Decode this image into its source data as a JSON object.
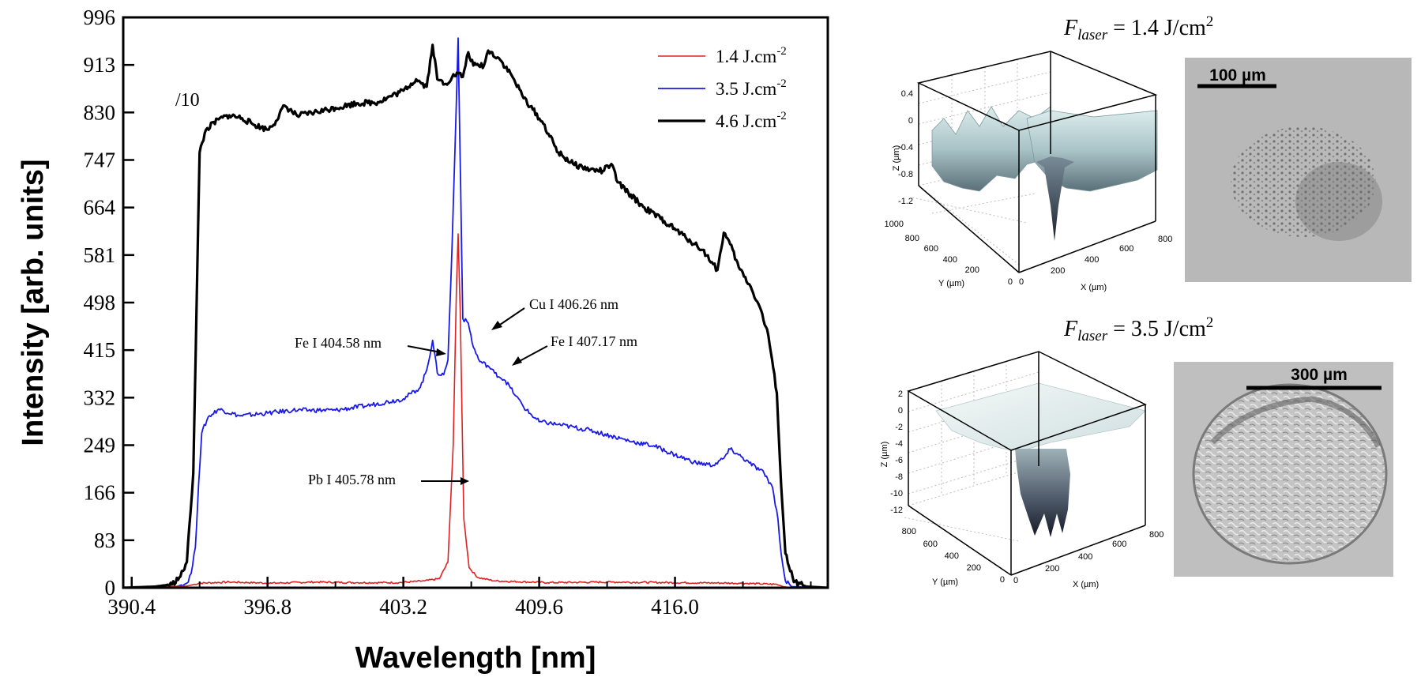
{
  "chart_data": {
    "type": "line",
    "xlabel": "Wavelength [nm]",
    "ylabel": "Intensity [arb. units]",
    "xlim": [
      390.0,
      423.2
    ],
    "ylim": [
      0,
      996
    ],
    "x_ticks": [
      "390.4",
      "396.8",
      "403.2",
      "409.6",
      "416.0"
    ],
    "y_ticks": [
      "0",
      "83",
      "166",
      "249",
      "332",
      "415",
      "498",
      "581",
      "664",
      "747",
      "830",
      "913",
      "996"
    ],
    "grid": false,
    "legend_position": "top-right",
    "series": [
      {
        "name": "1.4 J.cm-2",
        "label_main": "1.4 J.cm",
        "label_sup": "-2",
        "color": "#e02020",
        "points": [
          [
            390.0,
            0
          ],
          [
            393.0,
            3
          ],
          [
            393.6,
            8
          ],
          [
            395.0,
            10
          ],
          [
            397.0,
            8
          ],
          [
            399.0,
            10
          ],
          [
            401.0,
            9
          ],
          [
            403.0,
            9
          ],
          [
            404.2,
            12
          ],
          [
            404.9,
            16
          ],
          [
            405.3,
            45
          ],
          [
            405.55,
            250
          ],
          [
            405.7,
            520
          ],
          [
            405.78,
            618
          ],
          [
            405.88,
            480
          ],
          [
            406.05,
            120
          ],
          [
            406.3,
            35
          ],
          [
            406.7,
            18
          ],
          [
            407.5,
            12
          ],
          [
            410.0,
            9
          ],
          [
            413.0,
            10
          ],
          [
            416.0,
            9
          ],
          [
            419.0,
            8
          ],
          [
            420.8,
            6
          ],
          [
            421.1,
            2
          ],
          [
            421.5,
            0
          ],
          [
            423.2,
            0
          ]
        ]
      },
      {
        "name": "3.5 J.cm-2",
        "label_main": "3.5 J.cm",
        "label_sup": "-2",
        "color": "#1a1ae6",
        "points": [
          [
            390.0,
            0
          ],
          [
            392.5,
            2
          ],
          [
            393.0,
            8
          ],
          [
            393.2,
            25
          ],
          [
            393.4,
            70
          ],
          [
            393.55,
            180
          ],
          [
            393.7,
            270
          ],
          [
            394.0,
            298
          ],
          [
            394.5,
            312
          ],
          [
            395.5,
            300
          ],
          [
            396.8,
            305
          ],
          [
            398.0,
            310
          ],
          [
            400.0,
            310
          ],
          [
            401.5,
            318
          ],
          [
            403.2,
            330
          ],
          [
            404.0,
            350
          ],
          [
            404.3,
            380
          ],
          [
            404.58,
            432
          ],
          [
            404.8,
            375
          ],
          [
            405.1,
            372
          ],
          [
            405.3,
            398
          ],
          [
            405.5,
            600
          ],
          [
            405.7,
            850
          ],
          [
            405.78,
            960
          ],
          [
            405.9,
            700
          ],
          [
            406.0,
            470
          ],
          [
            406.26,
            462
          ],
          [
            406.5,
            420
          ],
          [
            406.8,
            395
          ],
          [
            407.17,
            388
          ],
          [
            407.5,
            375
          ],
          [
            408.0,
            362
          ],
          [
            408.5,
            335
          ],
          [
            409.0,
            310
          ],
          [
            409.6,
            290
          ],
          [
            410.5,
            285
          ],
          [
            412.0,
            275
          ],
          [
            413.0,
            265
          ],
          [
            414.0,
            255
          ],
          [
            415.0,
            248
          ],
          [
            416.0,
            232
          ],
          [
            417.0,
            218
          ],
          [
            417.8,
            214
          ],
          [
            418.3,
            226
          ],
          [
            418.6,
            242
          ],
          [
            419.0,
            232
          ],
          [
            419.5,
            218
          ],
          [
            420.2,
            200
          ],
          [
            420.6,
            175
          ],
          [
            420.85,
            120
          ],
          [
            421.0,
            60
          ],
          [
            421.2,
            12
          ],
          [
            421.5,
            2
          ],
          [
            423.2,
            0
          ]
        ]
      },
      {
        "name": "4.6 J.cm-2",
        "label_main": "4.6 J.cm",
        "label_sup": "-2",
        "color": "#000000",
        "points": [
          [
            390.0,
            0
          ],
          [
            391.5,
            2
          ],
          [
            392.3,
            6
          ],
          [
            392.7,
            20
          ],
          [
            393.0,
            45
          ],
          [
            393.3,
            200
          ],
          [
            393.6,
            760
          ],
          [
            393.9,
            800
          ],
          [
            394.5,
            818
          ],
          [
            395.0,
            825
          ],
          [
            395.6,
            820
          ],
          [
            396.2,
            808
          ],
          [
            396.8,
            800
          ],
          [
            397.2,
            815
          ],
          [
            397.6,
            842
          ],
          [
            398.2,
            824
          ],
          [
            399.0,
            830
          ],
          [
            400.0,
            838
          ],
          [
            401.0,
            846
          ],
          [
            402.0,
            848
          ],
          [
            403.2,
            868
          ],
          [
            403.8,
            888
          ],
          [
            404.3,
            875
          ],
          [
            404.58,
            948
          ],
          [
            404.8,
            888
          ],
          [
            405.2,
            880
          ],
          [
            405.5,
            892
          ],
          [
            405.78,
            898
          ],
          [
            406.0,
            892
          ],
          [
            406.26,
            935
          ],
          [
            406.5,
            912
          ],
          [
            407.0,
            912
          ],
          [
            407.2,
            938
          ],
          [
            407.7,
            925
          ],
          [
            408.3,
            895
          ],
          [
            408.8,
            860
          ],
          [
            409.3,
            835
          ],
          [
            409.8,
            810
          ],
          [
            410.5,
            760
          ],
          [
            411.2,
            740
          ],
          [
            412.0,
            730
          ],
          [
            412.6,
            728
          ],
          [
            413.0,
            740
          ],
          [
            413.3,
            708
          ],
          [
            413.8,
            690
          ],
          [
            414.5,
            665
          ],
          [
            415.5,
            640
          ],
          [
            416.5,
            612
          ],
          [
            417.3,
            590
          ],
          [
            417.8,
            565
          ],
          [
            418.0,
            555
          ],
          [
            418.3,
            620
          ],
          [
            418.6,
            600
          ],
          [
            419.0,
            560
          ],
          [
            419.5,
            530
          ],
          [
            420.0,
            490
          ],
          [
            420.4,
            440
          ],
          [
            420.8,
            340
          ],
          [
            421.0,
            180
          ],
          [
            421.2,
            60
          ],
          [
            421.6,
            10
          ],
          [
            422.2,
            2
          ],
          [
            423.2,
            0
          ]
        ]
      }
    ],
    "annotations": [
      {
        "text": "/10"
      },
      {
        "text": "Fe I 404.58 nm"
      },
      {
        "text": "Cu I 406.26 nm"
      },
      {
        "text": "Fe I 407.17 nm"
      },
      {
        "text": "Pb I 405.78 nm"
      }
    ]
  },
  "panels": {
    "top": {
      "title_f": "F",
      "title_sub": "laser",
      "title_rest": " = 1.4 J/cm",
      "title_sup": "2",
      "scale_label": "100 µm",
      "z_label": "Z (µm)",
      "y_label": "Y (µm)",
      "x_label": "X (µm)",
      "z_ticks": [
        "0.4",
        "0",
        "-0.4",
        "-0.8",
        "-1.2"
      ],
      "y_ticks": [
        "1000",
        "800",
        "600",
        "400",
        "200",
        "0"
      ],
      "x_ticks": [
        "0",
        "200",
        "400",
        "600",
        "800"
      ]
    },
    "bottom": {
      "title_f": "F",
      "title_sub": "laser",
      "title_rest": " = 3.5 J/cm",
      "title_sup": "2",
      "scale_label": "300 µm",
      "z_label": "Z (µm)",
      "y_label": "Y (µm)",
      "x_label": "X (µm)",
      "z_ticks": [
        "2",
        "0",
        "-2",
        "-4",
        "-6",
        "-8",
        "-10",
        "-12"
      ],
      "y_ticks": [
        "800",
        "600",
        "400",
        "200",
        "0"
      ],
      "x_ticks": [
        "0",
        "200",
        "400",
        "600",
        "800"
      ]
    }
  }
}
